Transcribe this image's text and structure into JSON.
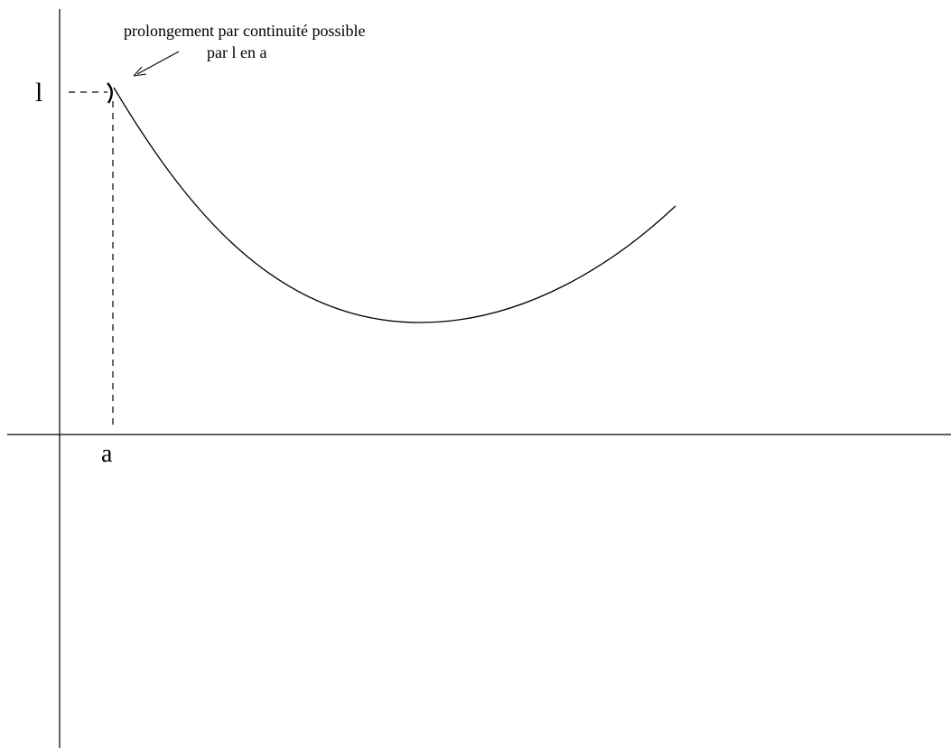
{
  "annotation": {
    "line1": "prolongement par continuité possible",
    "line2": "par l en a"
  },
  "labels": {
    "y_value": "l",
    "x_value": "a"
  }
}
